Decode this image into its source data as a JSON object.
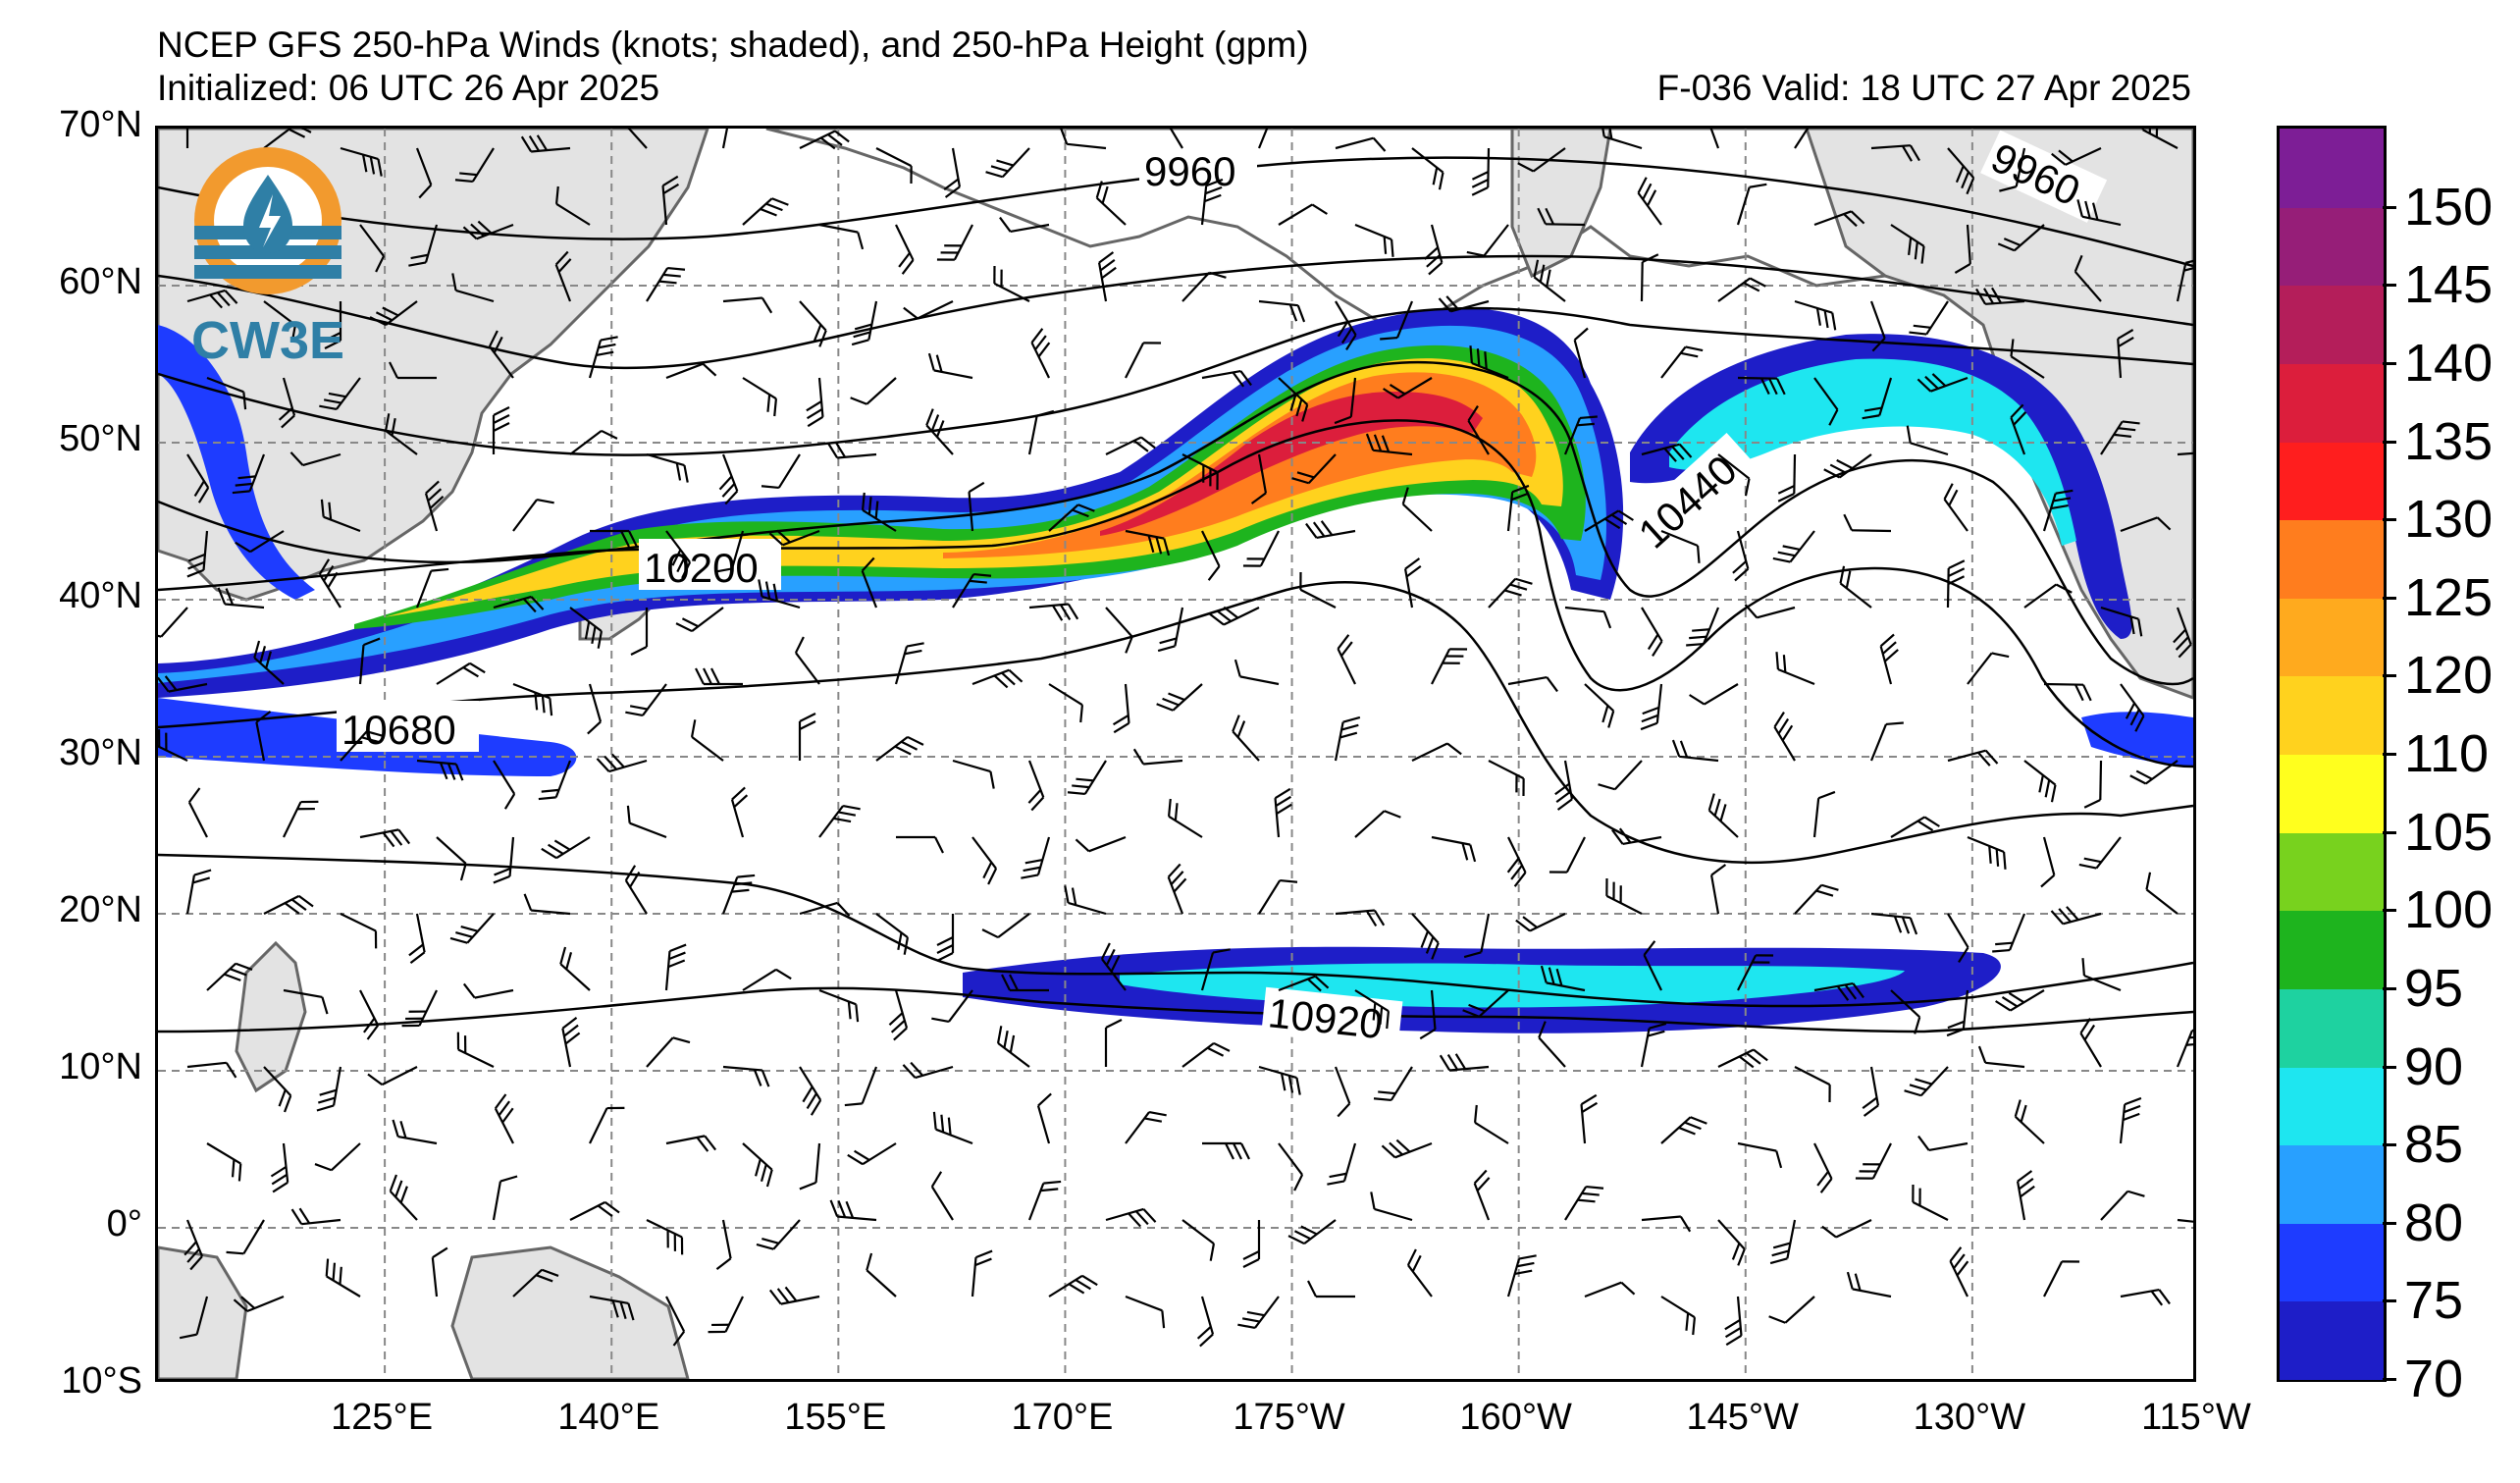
{
  "titles": {
    "line1": "NCEP GFS 250-hPa Winds (knots; shaded), and 250-hPa Height (gpm)",
    "initialized": "Initialized: 06 UTC 26 Apr 2025",
    "valid": "F-036  Valid: 18 UTC 27 Apr 2025"
  },
  "logo": {
    "text": "CW3E",
    "icon": "cw3e-water-drop-logo"
  },
  "map": {
    "lat_labels": [
      "70°N",
      "60°N",
      "50°N",
      "40°N",
      "30°N",
      "20°N",
      "10°N",
      "0°",
      "10°S"
    ],
    "lon_labels": [
      "125°E",
      "140°E",
      "155°E",
      "170°E",
      "175°W",
      "160°W",
      "145°W",
      "130°W",
      "115°W"
    ],
    "lat_range": [
      -10,
      70
    ],
    "lon_range_east": [
      110,
      245
    ],
    "gridlines": "dashed gray",
    "land_color": "#e3e3e3",
    "coast_color": "#666666"
  },
  "chart_data": {
    "type": "heatmap",
    "title": "NCEP GFS 250-hPa Winds (knots; shaded), and 250-hPa Height (gpm)",
    "colorbar": {
      "ticks": [
        "70",
        "75",
        "80",
        "85",
        "90",
        "95",
        "100",
        "105",
        "110",
        "120",
        "125",
        "130",
        "135",
        "140",
        "145",
        "150"
      ],
      "min": 70,
      "colors": [
        "#1e1ec8",
        "#1e3cff",
        "#28a0ff",
        "#1ee6f0",
        "#1ed2a0",
        "#1eb41e",
        "#78d21e",
        "#ffff1e",
        "#ffd21e",
        "#ffaa1e",
        "#ff7d1e",
        "#ff1e1e",
        "#dc1e3c",
        "#b41e5a",
        "#961e78",
        "#7d1e96"
      ]
    },
    "height_contour_labels": [
      "9960",
      "9960",
      "10200",
      "10440",
      "10680",
      "10920"
    ],
    "jet_streaks": [
      {
        "name": "north-pacific-jet",
        "max_wind_kt": 135
      },
      {
        "name": "gulf-of-alaska-jet",
        "max_wind_kt": 90
      },
      {
        "name": "subtropical-jet",
        "max_wind_kt": 90
      }
    ]
  }
}
